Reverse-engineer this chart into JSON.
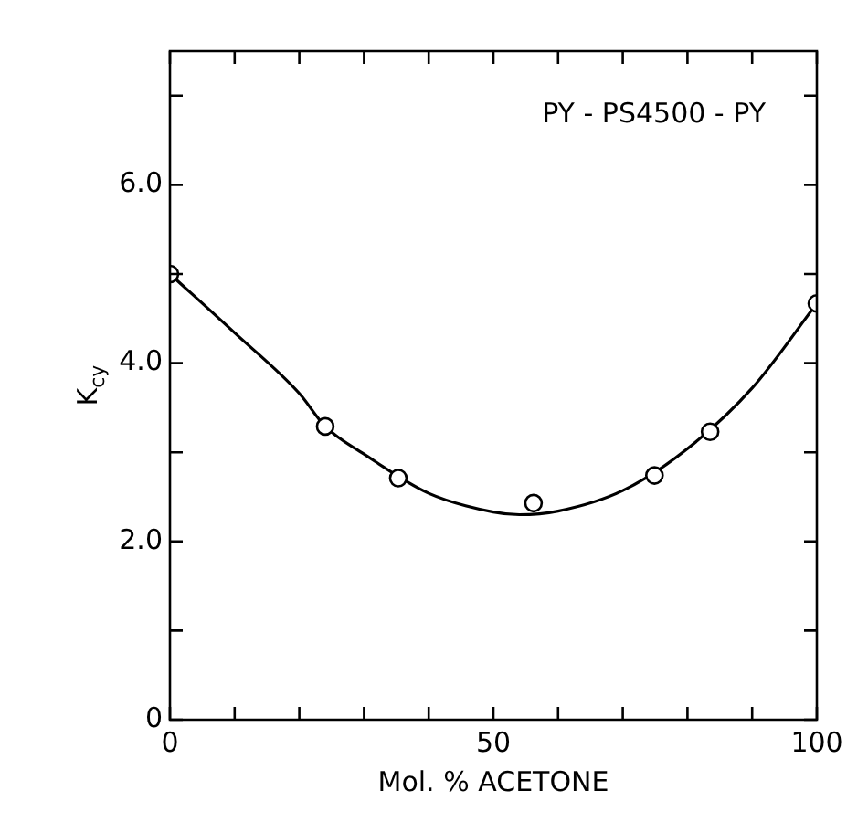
{
  "chart_data": {
    "type": "scatter",
    "xlabel": "Mol. % ACETONE",
    "ylabel": "K$_{cy}$",
    "annotations": [
      "PY - PS4500 - PY"
    ],
    "xlim": [
      0,
      100
    ],
    "xticks": [
      0,
      {
        "value": 10,
        "label": null
      },
      {
        "value": 20,
        "label": null
      },
      {
        "value": 30,
        "label": null
      },
      {
        "value": 40,
        "label": null
      },
      50,
      {
        "value": 60,
        "label": null
      },
      {
        "value": 70,
        "label": null
      },
      {
        "value": 80,
        "label": null
      },
      {
        "value": 90,
        "label": null
      },
      100
    ],
    "ylim": [
      0,
      7.5
    ],
    "yticks": [
      0,
      {
        "value": 1,
        "label": null
      },
      {
        "value": 2,
        "label": "2.0"
      },
      {
        "value": 3,
        "label": null
      },
      {
        "value": 4,
        "label": "4.0"
      },
      {
        "value": 5,
        "label": null
      },
      {
        "value": 6,
        "label": "6.0"
      },
      {
        "value": 7,
        "label": null
      }
    ],
    "grid": false,
    "legend": false,
    "marker": "circle",
    "series": [
      {
        "type": "scatter",
        "color": "#000000",
        "x": [
          0,
          24,
          35.3,
          56.2,
          74.9,
          83.5,
          100
        ],
        "values": [
          5.0,
          3.29,
          2.71,
          2.43,
          2.74,
          3.23,
          4.67
        ]
      },
      {
        "type": "line",
        "color": "#000000",
        "marker": "none",
        "line_style": "solid",
        "x": [
          0,
          10,
          20,
          24,
          30,
          40,
          50,
          54,
          60,
          70,
          80,
          90,
          100
        ],
        "values": [
          5.0,
          4.34,
          3.66,
          3.29,
          2.98,
          2.54,
          2.33,
          2.3,
          2.34,
          2.57,
          3.04,
          3.72,
          4.67
        ]
      }
    ]
  }
}
